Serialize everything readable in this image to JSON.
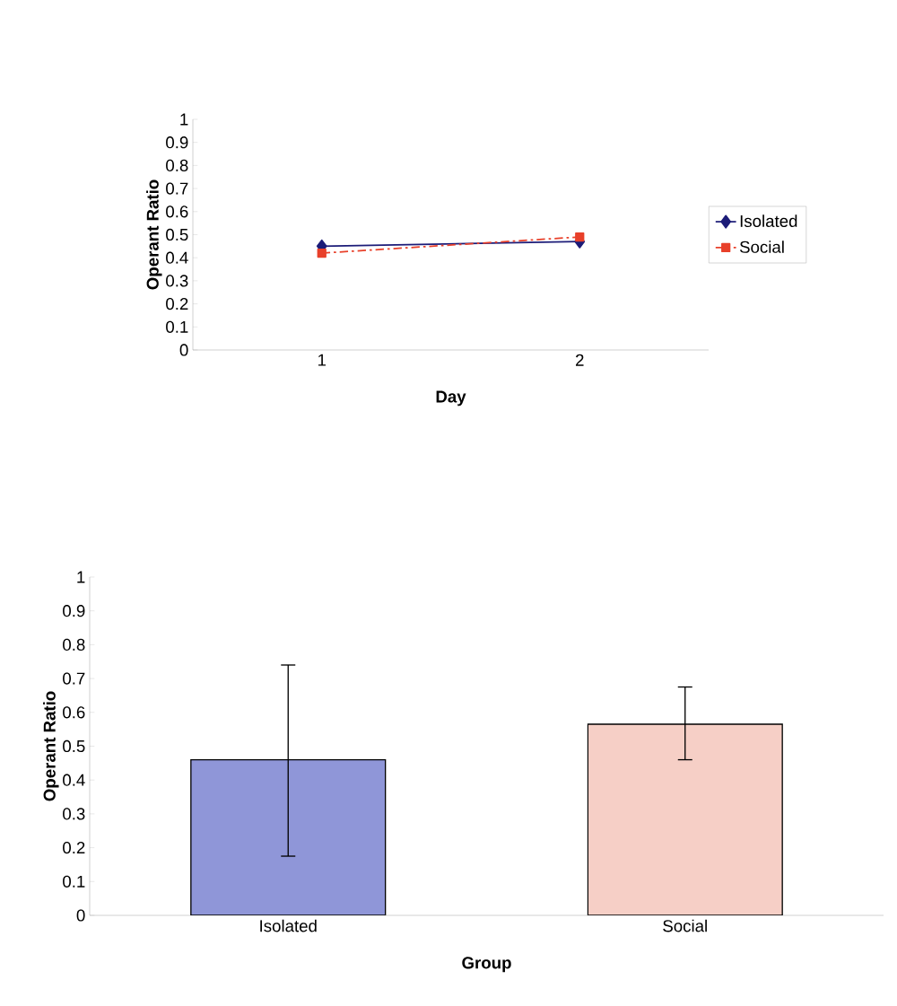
{
  "chart_data": [
    {
      "type": "line",
      "xlabel": "Day",
      "ylabel": "Operant Ratio",
      "categories": [
        "1",
        "2"
      ],
      "ylim": [
        0,
        1
      ],
      "yticks": [
        0,
        0.1,
        0.2,
        0.3,
        0.4,
        0.5,
        0.6,
        0.7,
        0.8,
        0.9,
        1
      ],
      "legend": "right",
      "series": [
        {
          "name": "Isolated",
          "color": "#1c1c78",
          "values": [
            0.45,
            0.47
          ],
          "marker": "diamond",
          "line_style": "solid"
        },
        {
          "name": "Social",
          "color": "#e8402a",
          "values": [
            0.42,
            0.49
          ],
          "marker": "square",
          "line_style": "dashed"
        }
      ]
    },
    {
      "type": "bar",
      "xlabel": "Group",
      "ylabel": "Operant Ratio",
      "categories": [
        "Isolated",
        "Social"
      ],
      "ylim": [
        0,
        1
      ],
      "yticks": [
        0,
        0.1,
        0.2,
        0.3,
        0.4,
        0.5,
        0.6,
        0.7,
        0.8,
        0.9,
        1
      ],
      "values": [
        0.46,
        0.565
      ],
      "colors": [
        "#8f96d8",
        "#f6cfc6"
      ],
      "errors": [
        [
          0.175,
          0.74
        ],
        [
          0.46,
          0.675
        ]
      ]
    }
  ]
}
